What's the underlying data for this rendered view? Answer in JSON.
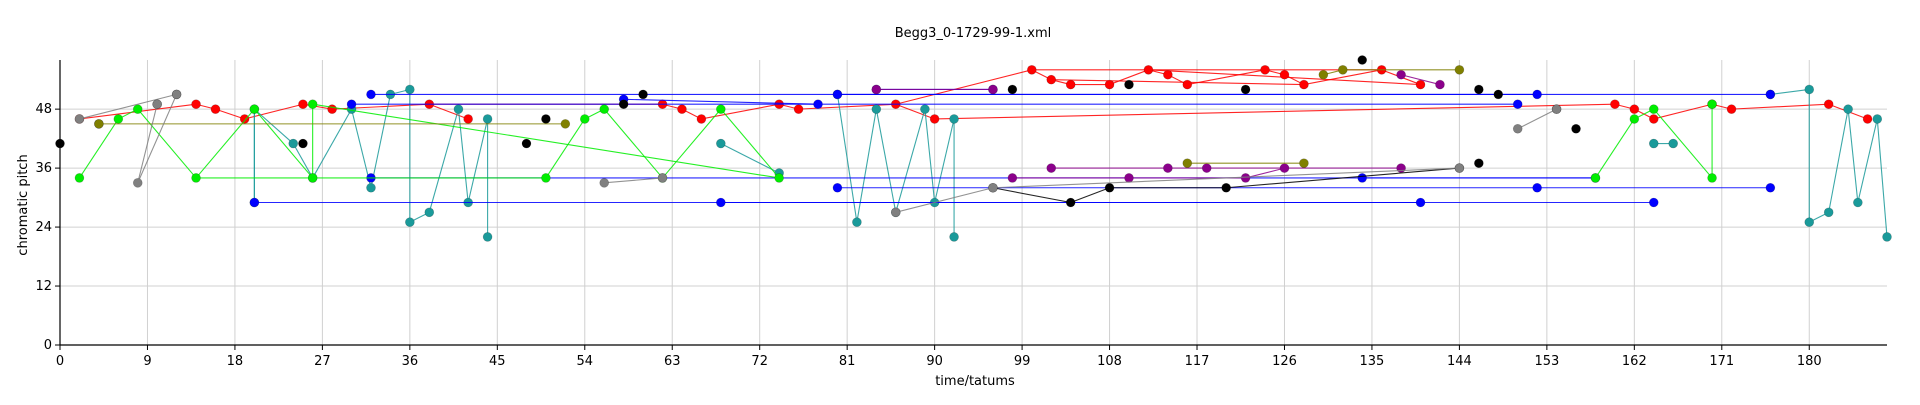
{
  "chart_data": {
    "type": "scatter",
    "title": "Begg3_0-1729-99-1.xml",
    "xlabel": "time/tatums",
    "ylabel": "chromatic pitch",
    "xlim": [
      0,
      188
    ],
    "ylim": [
      0,
      58
    ],
    "x_ticks": [
      0,
      9,
      18,
      27,
      36,
      45,
      54,
      63,
      72,
      81,
      90,
      99,
      108,
      117,
      126,
      135,
      144,
      153,
      162,
      171,
      180
    ],
    "y_ticks": [
      0,
      12,
      24,
      36,
      48
    ],
    "grid": true,
    "legend": "none",
    "colors": {
      "red": "#ff0000",
      "teal": "#1a9a9a",
      "blue": "#0000ff",
      "green": "#00ee00",
      "black": "#000000",
      "purple": "#8b008b",
      "olive": "#808000",
      "gray": "#808080"
    },
    "series": [
      {
        "color_key": "red",
        "points": [
          [
            2,
            46
          ],
          [
            14,
            49
          ],
          [
            16,
            48
          ],
          [
            19,
            46
          ],
          [
            25,
            49
          ],
          [
            28,
            48
          ],
          [
            38,
            49
          ],
          [
            42,
            46
          ],
          [
            62,
            49
          ],
          [
            64,
            48
          ],
          [
            66,
            46
          ],
          [
            74,
            49
          ],
          [
            76,
            48
          ],
          [
            86,
            49
          ],
          [
            90,
            46
          ],
          [
            100,
            56
          ],
          [
            102,
            54
          ],
          [
            104,
            53
          ],
          [
            108,
            53
          ],
          [
            112,
            56
          ],
          [
            114,
            55
          ],
          [
            116,
            53
          ],
          [
            124,
            56
          ],
          [
            126,
            55
          ],
          [
            128,
            53
          ],
          [
            136,
            56
          ],
          [
            140,
            53
          ],
          [
            160,
            49
          ],
          [
            162,
            48
          ],
          [
            164,
            46
          ],
          [
            170,
            49
          ],
          [
            172,
            48
          ],
          [
            182,
            49
          ],
          [
            186,
            46
          ]
        ],
        "edges": [
          [
            0,
            1
          ],
          [
            1,
            2
          ],
          [
            2,
            3
          ],
          [
            3,
            4
          ],
          [
            4,
            5
          ],
          [
            5,
            6
          ],
          [
            6,
            7
          ],
          [
            6,
            8
          ],
          [
            8,
            9
          ],
          [
            9,
            10
          ],
          [
            10,
            11
          ],
          [
            11,
            12
          ],
          [
            12,
            13
          ],
          [
            13,
            14
          ],
          [
            13,
            15
          ],
          [
            15,
            16
          ],
          [
            16,
            17
          ],
          [
            17,
            18
          ],
          [
            18,
            19
          ],
          [
            19,
            20
          ],
          [
            20,
            21
          ],
          [
            21,
            22
          ],
          [
            22,
            23
          ],
          [
            23,
            24
          ],
          [
            24,
            25
          ],
          [
            25,
            26
          ],
          [
            15,
            25
          ],
          [
            19,
            26
          ],
          [
            14,
            27
          ],
          [
            27,
            28
          ],
          [
            28,
            29
          ],
          [
            29,
            30
          ],
          [
            30,
            31
          ],
          [
            31,
            32
          ],
          [
            32,
            33
          ],
          [
            16,
            24
          ]
        ]
      },
      {
        "color_key": "teal",
        "points": [
          [
            20,
            48
          ],
          [
            20,
            29
          ],
          [
            24,
            41
          ],
          [
            26,
            34
          ],
          [
            30,
            48
          ],
          [
            32,
            32
          ],
          [
            34,
            51
          ],
          [
            36,
            52
          ],
          [
            36,
            25
          ],
          [
            38,
            27
          ],
          [
            41,
            48
          ],
          [
            42,
            29
          ],
          [
            44,
            46
          ],
          [
            44,
            22
          ],
          [
            68,
            41
          ],
          [
            74,
            35
          ],
          [
            80,
            51
          ],
          [
            82,
            25
          ],
          [
            84,
            48
          ],
          [
            86,
            27
          ],
          [
            89,
            48
          ],
          [
            90,
            29
          ],
          [
            92,
            46
          ],
          [
            92,
            22
          ],
          [
            164,
            41
          ],
          [
            166,
            41
          ],
          [
            176,
            51
          ],
          [
            180,
            52
          ],
          [
            180,
            25
          ],
          [
            182,
            27
          ],
          [
            184,
            48
          ],
          [
            185,
            29
          ],
          [
            187,
            46
          ],
          [
            188,
            22
          ]
        ],
        "edges": [
          [
            0,
            1
          ],
          [
            1,
            0
          ],
          [
            0,
            2
          ],
          [
            2,
            3
          ],
          [
            3,
            4
          ],
          [
            4,
            5
          ],
          [
            5,
            6
          ],
          [
            6,
            7
          ],
          [
            7,
            8
          ],
          [
            8,
            9
          ],
          [
            9,
            10
          ],
          [
            10,
            11
          ],
          [
            11,
            12
          ],
          [
            12,
            13
          ],
          [
            14,
            15
          ],
          [
            16,
            17
          ],
          [
            17,
            18
          ],
          [
            18,
            19
          ],
          [
            19,
            20
          ],
          [
            20,
            21
          ],
          [
            21,
            22
          ],
          [
            22,
            23
          ],
          [
            24,
            25
          ],
          [
            26,
            27
          ],
          [
            27,
            28
          ],
          [
            28,
            29
          ],
          [
            29,
            30
          ],
          [
            30,
            31
          ],
          [
            31,
            32
          ],
          [
            32,
            33
          ]
        ]
      },
      {
        "color_key": "blue",
        "points": [
          [
            20,
            29
          ],
          [
            30,
            49
          ],
          [
            32,
            51
          ],
          [
            32,
            34
          ],
          [
            58,
            50
          ],
          [
            78,
            49
          ],
          [
            80,
            51
          ],
          [
            80,
            32
          ],
          [
            84,
            52
          ],
          [
            68,
            29
          ],
          [
            96,
            52
          ],
          [
            134,
            34
          ],
          [
            140,
            29
          ],
          [
            150,
            49
          ],
          [
            152,
            51
          ],
          [
            152,
            32
          ],
          [
            158,
            34
          ],
          [
            164,
            29
          ],
          [
            176,
            51
          ],
          [
            176,
            32
          ]
        ],
        "edges": [
          [
            0,
            17
          ],
          [
            1,
            13
          ],
          [
            2,
            18
          ],
          [
            3,
            16
          ],
          [
            4,
            5
          ],
          [
            6,
            14
          ],
          [
            7,
            15
          ],
          [
            8,
            10
          ],
          [
            9,
            12
          ],
          [
            11,
            16
          ],
          [
            15,
            19
          ]
        ]
      },
      {
        "color_key": "green",
        "points": [
          [
            2,
            34
          ],
          [
            6,
            46
          ],
          [
            8,
            48
          ],
          [
            14,
            34
          ],
          [
            20,
            48
          ],
          [
            26,
            34
          ],
          [
            26,
            49
          ],
          [
            50,
            34
          ],
          [
            54,
            46
          ],
          [
            56,
            48
          ],
          [
            62,
            34
          ],
          [
            68,
            48
          ],
          [
            74,
            34
          ],
          [
            158,
            34
          ],
          [
            162,
            46
          ],
          [
            164,
            48
          ],
          [
            170,
            34
          ],
          [
            170,
            49
          ]
        ],
        "edges": [
          [
            0,
            1
          ],
          [
            1,
            2
          ],
          [
            2,
            3
          ],
          [
            3,
            4
          ],
          [
            4,
            5
          ],
          [
            5,
            6
          ],
          [
            3,
            7
          ],
          [
            7,
            8
          ],
          [
            8,
            9
          ],
          [
            9,
            10
          ],
          [
            10,
            11
          ],
          [
            11,
            12
          ],
          [
            12,
            6
          ],
          [
            13,
            14
          ],
          [
            14,
            15
          ],
          [
            15,
            16
          ],
          [
            16,
            17
          ]
        ]
      },
      {
        "color_key": "black",
        "points": [
          [
            0,
            41
          ],
          [
            4,
            45
          ],
          [
            10,
            49
          ],
          [
            12,
            51
          ],
          [
            25,
            41
          ],
          [
            48,
            41
          ],
          [
            50,
            46
          ],
          [
            58,
            49
          ],
          [
            60,
            51
          ],
          [
            98,
            52
          ],
          [
            110,
            53
          ],
          [
            122,
            52
          ],
          [
            134,
            58
          ],
          [
            146,
            52
          ],
          [
            148,
            51
          ],
          [
            154,
            48
          ],
          [
            156,
            44
          ],
          [
            96,
            32
          ],
          [
            104,
            29
          ],
          [
            108,
            32
          ],
          [
            120,
            32
          ],
          [
            144,
            36
          ],
          [
            146,
            37
          ]
        ],
        "edges": [
          [
            17,
            18
          ],
          [
            18,
            19
          ],
          [
            19,
            20
          ],
          [
            20,
            21
          ]
        ]
      },
      {
        "color_key": "purple",
        "points": [
          [
            96,
            52
          ],
          [
            84,
            52
          ],
          [
            102,
            36
          ],
          [
            114,
            36
          ],
          [
            118,
            36
          ],
          [
            138,
            36
          ],
          [
            98,
            34
          ],
          [
            110,
            34
          ],
          [
            122,
            34
          ],
          [
            126,
            36
          ],
          [
            138,
            55
          ],
          [
            142,
            53
          ]
        ],
        "edges": [
          [
            1,
            0
          ],
          [
            2,
            3
          ],
          [
            3,
            4
          ],
          [
            4,
            5
          ],
          [
            6,
            7
          ],
          [
            7,
            8
          ],
          [
            8,
            9
          ],
          [
            10,
            11
          ]
        ]
      },
      {
        "color_key": "olive",
        "points": [
          [
            4,
            45
          ],
          [
            52,
            45
          ],
          [
            116,
            37
          ],
          [
            128,
            37
          ],
          [
            130,
            55
          ],
          [
            132,
            56
          ],
          [
            144,
            56
          ]
        ],
        "edges": [
          [
            0,
            1
          ],
          [
            2,
            3
          ],
          [
            4,
            5
          ],
          [
            5,
            6
          ]
        ]
      },
      {
        "color_key": "gray",
        "points": [
          [
            2,
            46
          ],
          [
            12,
            51
          ],
          [
            8,
            33
          ],
          [
            10,
            49
          ],
          [
            56,
            33
          ],
          [
            62,
            34
          ],
          [
            86,
            27
          ],
          [
            96,
            32
          ],
          [
            144,
            36
          ],
          [
            154,
            48
          ],
          [
            150,
            44
          ]
        ],
        "edges": [
          [
            0,
            1
          ],
          [
            1,
            2
          ],
          [
            2,
            3
          ],
          [
            4,
            5
          ],
          [
            6,
            7
          ],
          [
            7,
            8
          ],
          [
            9,
            10
          ]
        ]
      }
    ]
  }
}
